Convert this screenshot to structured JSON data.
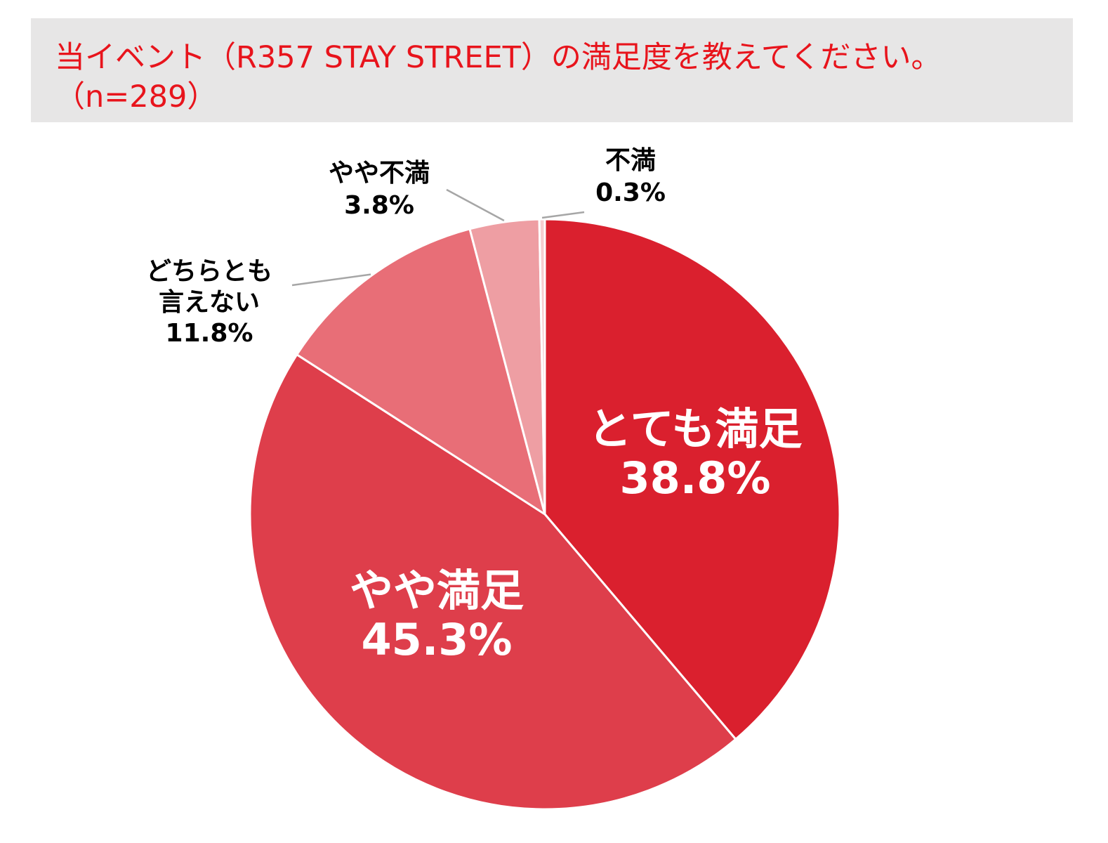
{
  "title_lines": [
    "当イベント（R357 STAY STREET）の満足度を教えてください。",
    "（n=289）"
  ],
  "colors": {
    "title": "#e8141c",
    "title_bg": "#e7e6e6",
    "inside_label": "#ffffff",
    "outside_label": "#000000",
    "leader": "#a6a6a6",
    "slice_border": "#ffffff"
  },
  "chart_data": {
    "type": "pie",
    "title": "当イベント（R357 STAY STREET）の満足度を教えてください。（n=289）",
    "start": "12 o'clock, clockwise",
    "slices": [
      {
        "label": "とても満足",
        "label_lines": [
          "とても満足"
        ],
        "value": 38.8,
        "display": "38.8%",
        "color": "#da202e",
        "label_position": "inside"
      },
      {
        "label": "やや満足",
        "label_lines": [
          "やや満足"
        ],
        "value": 45.3,
        "display": "45.3%",
        "color": "#de3e4b",
        "label_position": "inside"
      },
      {
        "label": "どちらとも言えない",
        "label_lines": [
          "どちらとも",
          "言えない"
        ],
        "value": 11.8,
        "display": "11.8%",
        "color": "#e86e77",
        "label_position": "outside"
      },
      {
        "label": "やや不満",
        "label_lines": [
          "やや不満"
        ],
        "value": 3.8,
        "display": "3.8%",
        "color": "#ee9ea3",
        "label_position": "outside"
      },
      {
        "label": "不満",
        "label_lines": [
          "不満"
        ],
        "value": 0.3,
        "display": "0.3%",
        "color": "#f6cdd0",
        "label_position": "outside"
      }
    ]
  }
}
